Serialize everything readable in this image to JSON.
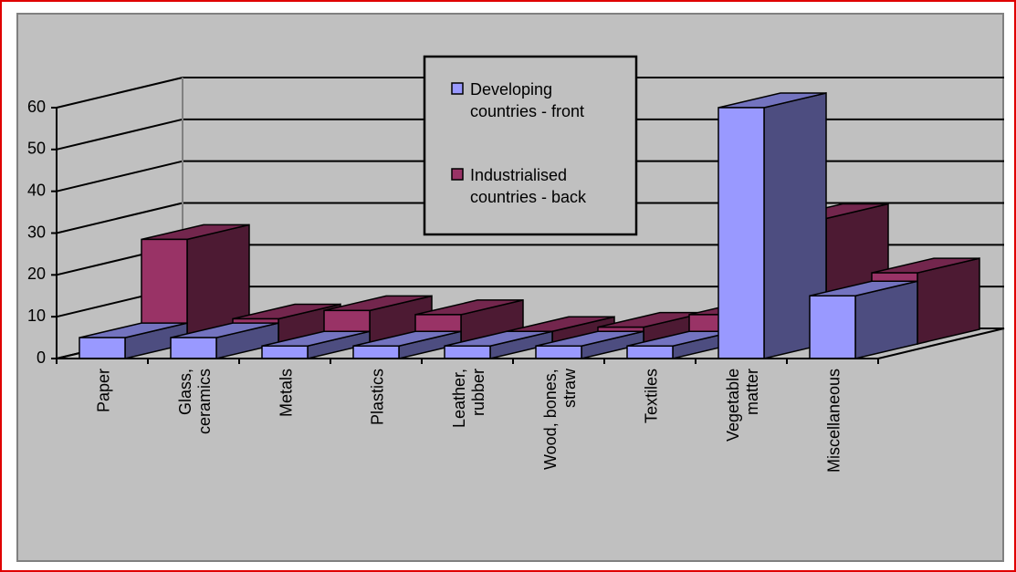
{
  "chart_data": {
    "type": "bar3d",
    "categories": [
      "Paper",
      "Glass,\nceramics",
      "Metals",
      "Plastics",
      "Leather,\nrubber",
      "Wood, bones,\nstraw",
      "Textiles",
      "Vegetable\nmatter",
      "Miscellaneous"
    ],
    "series": [
      {
        "name": "Developing\ncountries - front",
        "color": "#9999ff",
        "values": [
          5,
          5,
          3,
          3,
          3,
          3,
          3,
          60,
          15
        ]
      },
      {
        "name": "Industrialised\ncountries - back",
        "color": "#993366",
        "values": [
          25,
          6,
          8,
          7,
          3,
          4,
          7,
          30,
          17
        ]
      }
    ],
    "ylim": [
      0,
      60
    ],
    "yticks": [
      0,
      10,
      20,
      30,
      40,
      50,
      60
    ],
    "grid": true,
    "legend": "top"
  }
}
